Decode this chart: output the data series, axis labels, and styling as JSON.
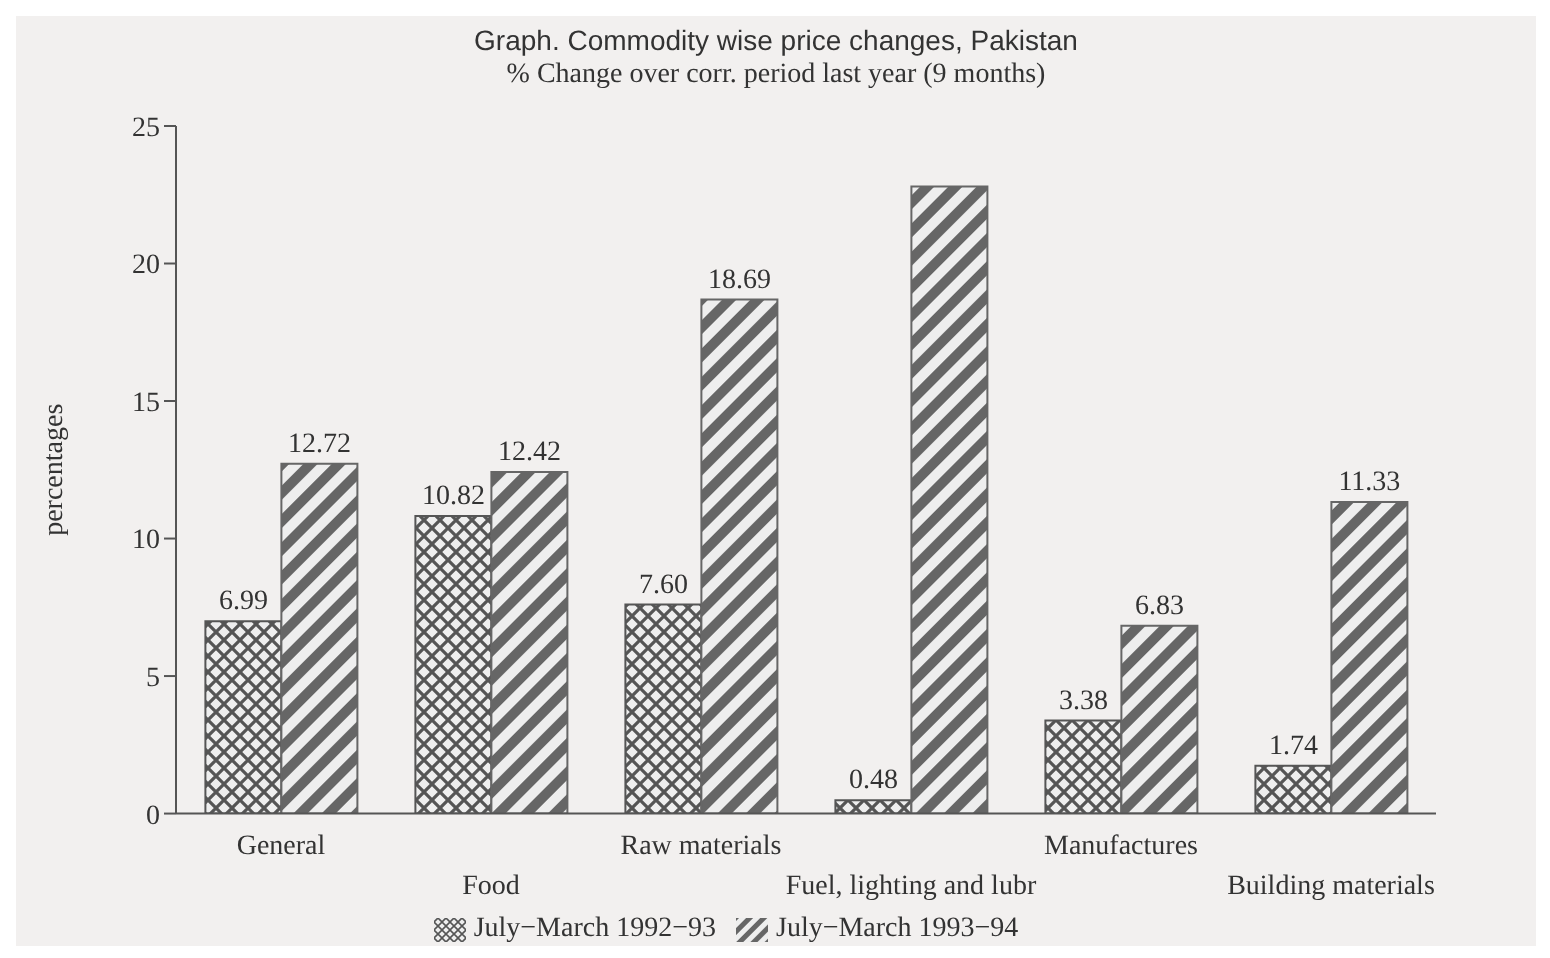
{
  "chart_data": {
    "type": "bar",
    "title": "Graph. Commodity wise price changes, Pakistan",
    "subtitle": "% Change over corr. period last year (9 months)",
    "ylabel": "percentages",
    "categories": [
      "General",
      "Food",
      "Raw materials",
      "Fuel, lighting and lubr",
      "Manufactures",
      "Building materials"
    ],
    "series": [
      {
        "name": "July−March 1992−93",
        "color": "#555555",
        "values": [
          6.99,
          10.82,
          7.6,
          0.48,
          3.38,
          1.74
        ],
        "value_labels": [
          "6.99",
          "10.82",
          "7.60",
          "0.48",
          "3.38",
          "1.74"
        ]
      },
      {
        "name": "July−March 1993−94",
        "color": "#666666",
        "values": [
          12.72,
          12.42,
          18.69,
          22.8,
          6.83,
          11.33
        ],
        "value_labels": [
          "12.72",
          "12.42",
          "18.69",
          null,
          "6.83",
          "11.33"
        ]
      }
    ],
    "ylim": [
      0,
      25
    ],
    "yticks": [
      0,
      5,
      10,
      15,
      20,
      25
    ],
    "grid": false,
    "legend": "bottom"
  }
}
